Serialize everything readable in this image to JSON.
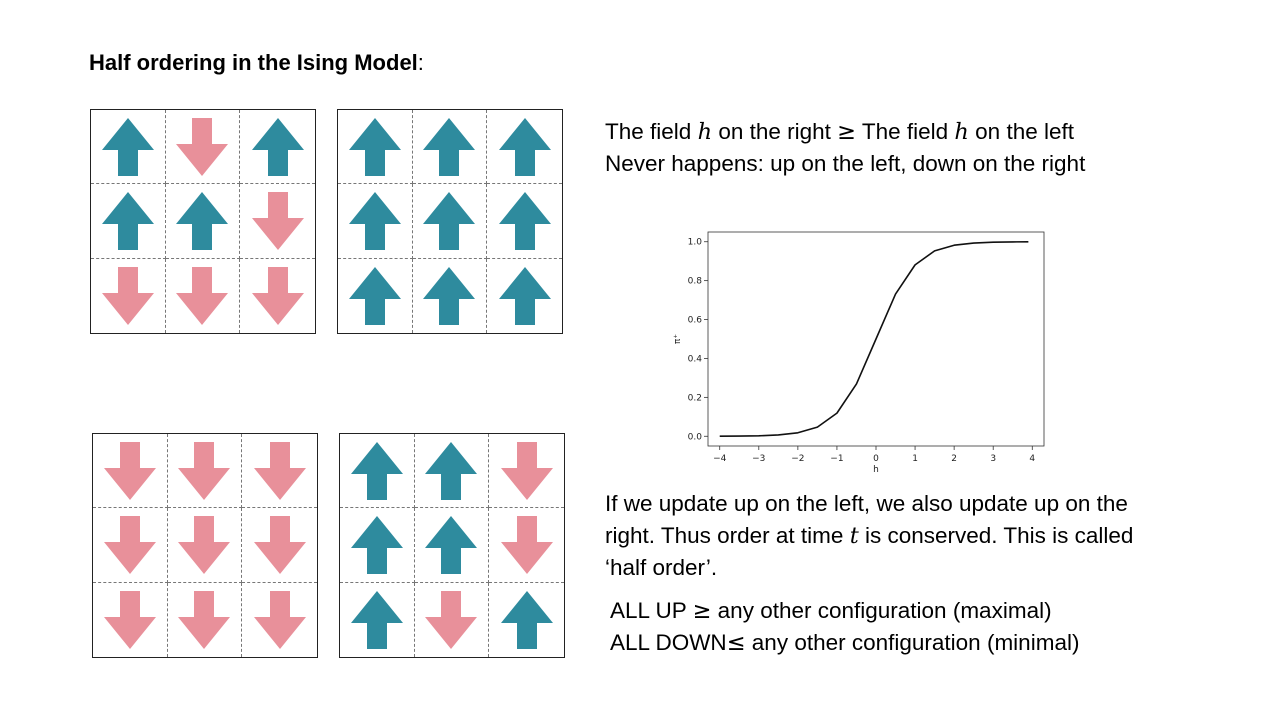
{
  "title": {
    "bold": "Half ordering in the Ising Model",
    "suffix": ":"
  },
  "colors": {
    "up": "#2e8b9e",
    "down": "#e8909a"
  },
  "grids": [
    {
      "name": "top-left",
      "cells": [
        "up",
        "down",
        "up",
        "up",
        "up",
        "down",
        "down",
        "down",
        "down"
      ]
    },
    {
      "name": "top-right",
      "cells": [
        "up",
        "up",
        "up",
        "up",
        "up",
        "up",
        "up",
        "up",
        "up"
      ]
    },
    {
      "name": "bottom-left",
      "cells": [
        "down",
        "down",
        "down",
        "down",
        "down",
        "down",
        "down",
        "down",
        "down"
      ]
    },
    {
      "name": "bottom-right",
      "cells": [
        "up",
        "up",
        "down",
        "up",
        "up",
        "down",
        "up",
        "down",
        "up"
      ]
    }
  ],
  "text1": {
    "line1_a": "The field ",
    "var_h": "h",
    "line1_b": " on the right ",
    "geq": "≥",
    "line1_c": " The field ",
    "line1_d": " on the left",
    "line2": "Never happens: up on the left, down on the right"
  },
  "text2": {
    "line1": "If we update up on the left, we also update up on the",
    "line2_a": "right. Thus order at time ",
    "var_t": "t",
    "line2_b": " is conserved. This is called",
    "line3": "‘half order’."
  },
  "text3": {
    "line1_a": "ALL UP ",
    "geq": "≥",
    "line1_b": "  any other configuration (maximal)",
    "line2_a": "ALL DOWN",
    "leq": "≤",
    "line2_b": " any other configuration (minimal)"
  },
  "chart_data": {
    "type": "line",
    "title": "",
    "xlabel": "h",
    "ylabel": "π⁺",
    "xlim": [
      -4.3,
      4.3
    ],
    "ylim": [
      -0.05,
      1.05
    ],
    "xticks": [
      -4,
      -3,
      -2,
      -1,
      0,
      1,
      2,
      3,
      4
    ],
    "yticks": [
      0.0,
      0.2,
      0.4,
      0.6,
      0.8,
      1.0
    ],
    "ytick_labels": [
      "0.0",
      "0.2",
      "0.4",
      "0.6",
      "0.8",
      "1.0"
    ],
    "grid": false,
    "series": [
      {
        "x": [
          -4,
          -3.5,
          -3,
          -2.5,
          -2,
          -1.5,
          -1,
          -0.5,
          0,
          0.5,
          1,
          1.5,
          2,
          2.5,
          3,
          3.5,
          3.9
        ],
        "y": [
          0.0003,
          0.0009,
          0.0025,
          0.0067,
          0.018,
          0.047,
          0.119,
          0.269,
          0.5,
          0.731,
          0.881,
          0.953,
          0.982,
          0.9933,
          0.9975,
          0.9991,
          0.9996
        ]
      }
    ]
  }
}
